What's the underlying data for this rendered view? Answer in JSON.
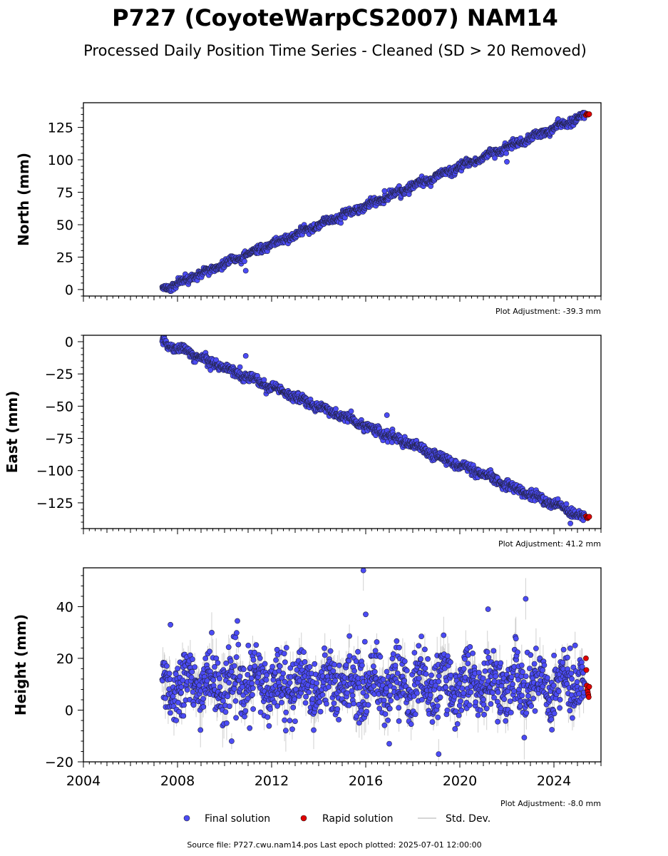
{
  "chart_data": {
    "type": "scatter",
    "title": "P727 (CoyoteWarpCS2007) NAM14",
    "subtitle": "Processed Daily Position Time Series - Cleaned (SD > 20 Removed)",
    "source_note": "Source file: P727.cwu.nam14.pos  Last epoch plotted: 2025-07-01 12:00:00",
    "x_range": [
      2004.0,
      2026.0
    ],
    "x_ticks": [
      2004,
      2008,
      2012,
      2016,
      2020,
      2024
    ],
    "x_tick_labels": [
      "2004",
      "2008",
      "2012",
      "2016",
      "2020",
      "2024"
    ],
    "legend": {
      "placement": "bottom",
      "entries": [
        {
          "label": "Final solution",
          "color": "#4b4bf5"
        },
        {
          "label": "Rapid solution",
          "color": "#e00000"
        },
        {
          "label": "Std. Dev.",
          "color": "#c8c8c8"
        }
      ]
    },
    "panels": [
      {
        "name": "north",
        "ylabel": "North (mm)",
        "ylim": [
          -5,
          144
        ],
        "y_ticks": [
          0,
          25,
          50,
          75,
          100,
          125
        ],
        "y_tick_labels": [
          "0",
          "25",
          "50",
          "75",
          "100",
          "125"
        ],
        "adjustment": "Plot Adjustment: -39.3 mm",
        "final_solution": {
          "start": 2007.35,
          "end": 2025.3,
          "trend_at_start": 0.0,
          "trend_at_end": 134.0,
          "scatter_mm": 1.5,
          "num_points": 1300,
          "outliers": [
            [
              2010.9,
              14.5
            ],
            [
              2016.8,
              76.0
            ],
            [
              2022.0,
              98.5
            ]
          ]
        },
        "rapid_solution": {
          "x": [
            2025.36,
            2025.4,
            2025.43,
            2025.46,
            2025.5
          ],
          "y": [
            134.5,
            135.5,
            135.0,
            134.8,
            135.2
          ]
        }
      },
      {
        "name": "east",
        "ylabel": "East (mm)",
        "ylim": [
          -145,
          5
        ],
        "y_ticks": [
          0,
          -25,
          -50,
          -75,
          -100,
          -125
        ],
        "y_tick_labels": [
          "0",
          "−25",
          "−50",
          "−75",
          "−100",
          "−125"
        ],
        "adjustment": "Plot Adjustment: 41.2 mm",
        "final_solution": {
          "start": 2007.35,
          "end": 2025.3,
          "trend_at_start": 0.0,
          "trend_at_end": -136.0,
          "scatter_mm": 1.8,
          "num_points": 1300,
          "outliers": [
            [
              2010.9,
              -11.0
            ],
            [
              2009.4,
              -22.0
            ],
            [
              2016.9,
              -57.0
            ],
            [
              2024.7,
              -141.0
            ]
          ]
        },
        "rapid_solution": {
          "x": [
            2025.36,
            2025.4,
            2025.43,
            2025.46,
            2025.5
          ],
          "y": [
            -135.5,
            -136.5,
            -137.0,
            -136.2,
            -135.8
          ]
        }
      },
      {
        "name": "height",
        "ylabel": "Height (mm)",
        "ylim": [
          -20,
          55
        ],
        "y_ticks": [
          -20,
          0,
          20,
          40
        ],
        "y_tick_labels": [
          "−20",
          "0",
          "20",
          "40"
        ],
        "adjustment": "Plot Adjustment: -8.0 mm",
        "final_solution": {
          "start": 2007.35,
          "end": 2025.3,
          "mean": 10.0,
          "scatter_mm": 6.0,
          "num_points": 1300,
          "outliers": [
            [
              2015.9,
              54.0
            ],
            [
              2016.0,
              37.0
            ],
            [
              2022.8,
              43.0
            ],
            [
              2021.2,
              39.0
            ],
            [
              2019.1,
              -17.0
            ],
            [
              2017.0,
              -13.0
            ],
            [
              2010.3,
              -12.0
            ],
            [
              2007.7,
              33.0
            ],
            [
              2024.9,
              25.0
            ]
          ]
        },
        "rapid_solution": {
          "x": [
            2025.36,
            2025.38,
            2025.4,
            2025.42,
            2025.44,
            2025.46,
            2025.48,
            2025.5
          ],
          "y": [
            20.0,
            15.5,
            9.5,
            8.0,
            7.0,
            6.0,
            5.0,
            9.0
          ]
        }
      }
    ]
  }
}
